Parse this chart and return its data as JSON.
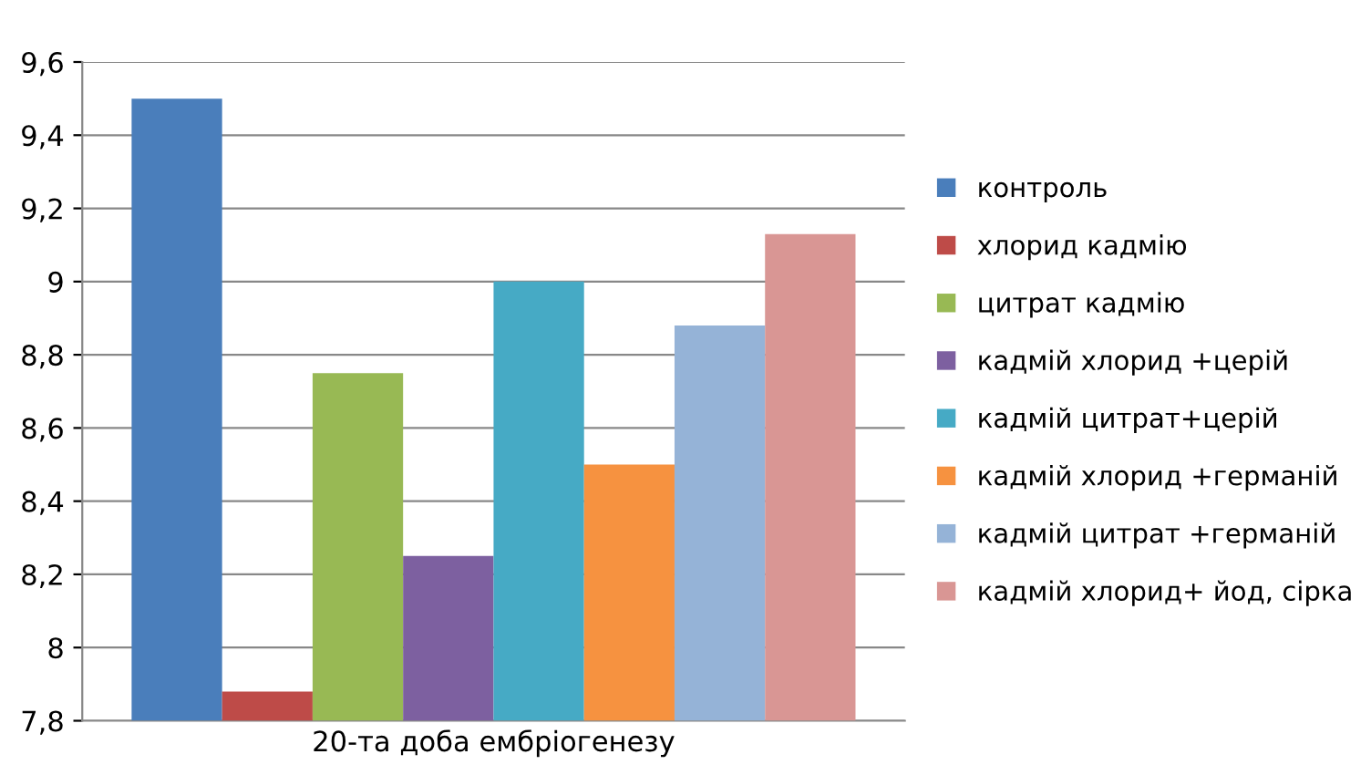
{
  "chart_data": {
    "type": "bar",
    "categories": [
      "20-та доба ембріогенезу"
    ],
    "series": [
      {
        "name": "контроль",
        "color": "#4a7ebb",
        "values": [
          9.5
        ]
      },
      {
        "name": "хлорид кадмію",
        "color": "#be4b48",
        "values": [
          7.88
        ]
      },
      {
        "name": "цитрат кадмію",
        "color": "#98b954",
        "values": [
          8.75
        ]
      },
      {
        "name": "кадмій хлорид +церій",
        "color": "#7d60a0",
        "values": [
          8.25
        ]
      },
      {
        "name": "кадмій цитрат+церій",
        "color": "#46aac5",
        "values": [
          9.0
        ]
      },
      {
        "name": "кадмій хлорид +германій",
        "color": "#f69240",
        "values": [
          8.5
        ]
      },
      {
        "name": "кадмій цитрат +германій",
        "color": "#95b3d7",
        "values": [
          8.88
        ]
      },
      {
        "name": "кадмій хлорид+ йод, сірка",
        "color": "#d99694",
        "values": [
          9.13
        ]
      }
    ],
    "ylim": [
      7.8,
      9.6
    ],
    "yticks": [
      {
        "value": 7.8,
        "label": "7,8"
      },
      8,
      {
        "value": 8.2,
        "label": "8,2"
      },
      {
        "value": 8.4,
        "label": "8,4"
      },
      {
        "value": 8.6,
        "label": "8,6"
      },
      {
        "value": 8.8,
        "label": "8,8"
      },
      9,
      {
        "value": 9.2,
        "label": "9,2"
      },
      {
        "value": 9.4,
        "label": "9,4"
      },
      {
        "value": 9.6,
        "label": "9,6"
      }
    ],
    "grid": "y",
    "legend": "right"
  }
}
